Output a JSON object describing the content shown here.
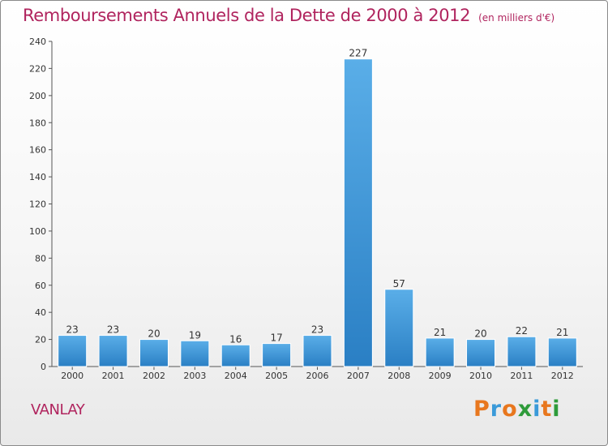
{
  "chart_data": {
    "type": "bar",
    "title": "Remboursements Annuels de la Dette de 2000 à 2012",
    "subtitle": "(en milliers d'€)",
    "categories": [
      "2000",
      "2001",
      "2002",
      "2003",
      "2004",
      "2005",
      "2006",
      "2007",
      "2008",
      "2009",
      "2010",
      "2011",
      "2012"
    ],
    "values": [
      23,
      23,
      20,
      19,
      16,
      17,
      23,
      227,
      57,
      21,
      20,
      22,
      21
    ],
    "xlabel": "",
    "ylabel": "",
    "ylim": [
      0,
      240
    ],
    "yticks": [
      0,
      20,
      40,
      60,
      80,
      100,
      120,
      140,
      160,
      180,
      200,
      220,
      240
    ],
    "grid": false,
    "bar_color": "#3a8fd8"
  },
  "commune": "VANLAY",
  "logo": {
    "letters": [
      "P",
      "r",
      "o",
      "x",
      "i",
      "t",
      "i"
    ],
    "colors": [
      "#e8771e",
      "#3a9ad9",
      "#e8771e",
      "#2e9b3a",
      "#3a9ad9",
      "#e8771e",
      "#2e9b3a"
    ]
  }
}
